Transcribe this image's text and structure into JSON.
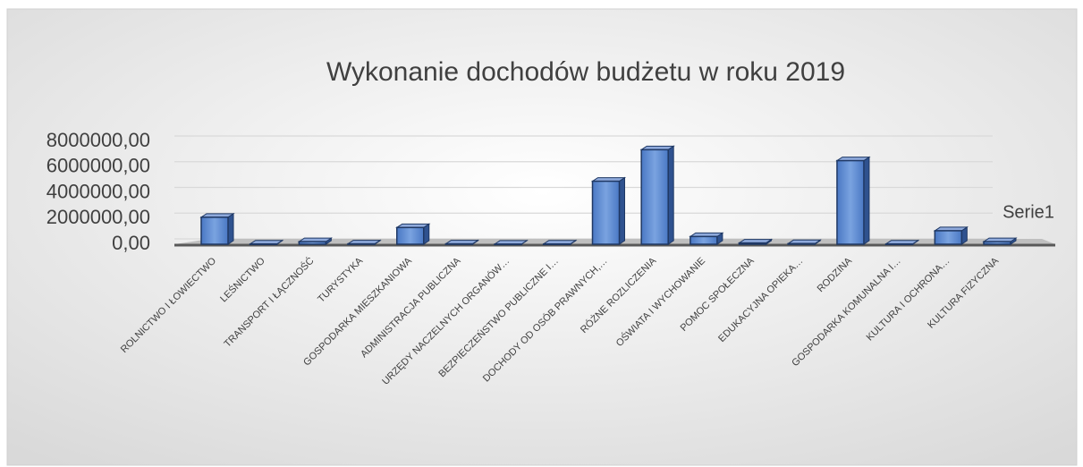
{
  "chart_data": {
    "type": "bar3d",
    "title": "Wykonanie dochodów budżetu w roku 2019",
    "categories": [
      "ROLNICTWO I ŁOWIECTWO",
      "LEŚNICTWO",
      "TRANSPORT I ŁĄCZNOŚĆ",
      "TURYSTYKA",
      "GOSPODARKA MIESZKANIOWA",
      "ADMINISTRACJA PUBLICZNA",
      "URZĘDY NACZELNYCH ORGANÓW…",
      "BEZPIECZEŃSTWO PUBLICZNE I…",
      "DOCHODY OD OSÓB PRAWNYCH,…",
      "RÓŻNE ROZLICZENIA",
      "OŚWIATA I WYCHOWANIE",
      "POMOC SPOŁECZNA",
      "EDUKACYJNA OPIEKA…",
      "RODZINA",
      "GOSPODARKA KOMUNALNA I…",
      "KULTURA I OCHRONA…",
      "KULTURA FIZYCZNA"
    ],
    "series": [
      {
        "name": "Serie1",
        "color": "#4472c4",
        "values": [
          2100000,
          20000,
          200000,
          30000,
          1300000,
          30000,
          10000,
          20000,
          4900000,
          7350000,
          600000,
          100000,
          50000,
          6500000,
          20000,
          1050000,
          200000
        ]
      }
    ],
    "ylim": [
      0,
      8000000
    ],
    "yticks": [
      {
        "value": 0,
        "label": "0,00"
      },
      {
        "value": 2000000,
        "label": "2000000,00"
      },
      {
        "value": 4000000,
        "label": "4000000,00"
      },
      {
        "value": 6000000,
        "label": "6000000,00"
      },
      {
        "value": 8000000,
        "label": "8000000,00"
      }
    ],
    "grid": true,
    "legend": "right"
  }
}
